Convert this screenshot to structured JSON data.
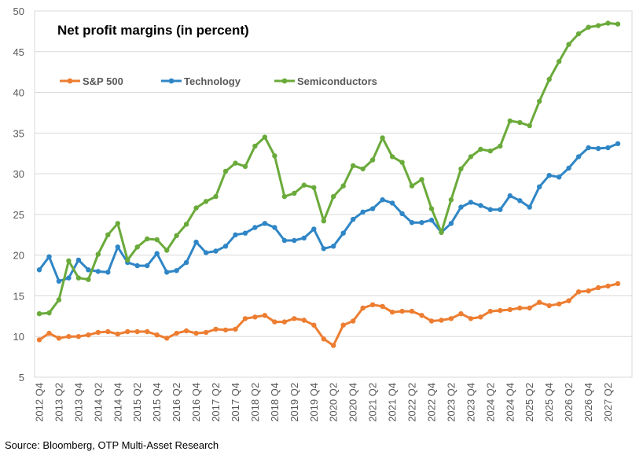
{
  "chart_data": {
    "type": "line",
    "title": "Net profit margins (in percent)",
    "xlabel": "",
    "ylabel": "",
    "ylim": [
      5,
      50
    ],
    "yticks": [
      5,
      10,
      15,
      20,
      25,
      30,
      35,
      40,
      45,
      50
    ],
    "grid": true,
    "legend": "top-left",
    "start_quarter": "2012 Q4",
    "x_tick_labels": [
      "2012 Q4",
      "2013 Q2",
      "2013 Q4",
      "2014 Q2",
      "2014 Q4",
      "2015 Q2",
      "2015 Q4",
      "2016 Q2",
      "2016 Q4",
      "2017 Q2",
      "2017 Q4",
      "2018 Q2",
      "2018 Q4",
      "2019 Q2",
      "2019 Q4",
      "2020 Q2",
      "2020 Q4",
      "2021 Q2",
      "2021 Q4",
      "2022 Q2",
      "2022 Q4",
      "2023 Q2",
      "2023 Q4",
      "2024 Q2",
      "2024 Q4",
      "2025 Q2",
      "2025 Q4",
      "2026 Q2",
      "2026 Q4",
      "2027 Q2"
    ],
    "series": [
      {
        "name": "S&P 500",
        "color": "#ed7d31",
        "values": [
          9.6,
          10.4,
          9.8,
          10.0,
          10.0,
          10.2,
          10.5,
          10.6,
          10.3,
          10.6,
          10.6,
          10.6,
          10.2,
          9.8,
          10.4,
          10.7,
          10.4,
          10.5,
          10.9,
          10.8,
          10.9,
          12.2,
          12.4,
          12.6,
          11.8,
          11.8,
          12.2,
          12.0,
          11.4,
          9.7,
          8.9,
          11.4,
          11.9,
          13.5,
          13.9,
          13.7,
          13.0,
          13.1,
          13.1,
          12.6,
          11.9,
          12.0,
          12.2,
          12.8,
          12.2,
          12.4,
          13.1,
          13.2,
          13.3,
          13.5,
          13.5,
          14.2,
          13.8,
          14.0,
          14.4,
          15.5,
          15.6,
          16.0,
          16.2,
          16.5
        ]
      },
      {
        "name": "Technology",
        "color": "#2f86c6",
        "values": [
          18.2,
          19.8,
          16.8,
          17.2,
          19.4,
          18.2,
          18.0,
          17.9,
          21.0,
          19.1,
          18.7,
          18.7,
          20.2,
          17.9,
          18.1,
          19.1,
          21.6,
          20.3,
          20.5,
          21.1,
          22.5,
          22.7,
          23.4,
          23.9,
          23.4,
          21.8,
          21.8,
          22.1,
          23.2,
          20.8,
          21.1,
          22.7,
          24.4,
          25.3,
          25.7,
          26.8,
          26.4,
          25.1,
          24.0,
          24.0,
          24.3,
          22.8,
          23.9,
          25.9,
          26.5,
          26.1,
          25.6,
          25.6,
          27.3,
          26.7,
          25.9,
          28.4,
          29.8,
          29.6,
          30.7,
          32.1,
          33.2,
          33.1,
          33.2,
          33.7
        ]
      },
      {
        "name": "Semiconductors",
        "color": "#6aaa3a",
        "values": [
          12.8,
          12.9,
          14.5,
          19.3,
          17.2,
          17.0,
          20.1,
          22.5,
          23.9,
          19.4,
          21.0,
          22.0,
          21.9,
          20.6,
          22.4,
          23.8,
          25.8,
          26.6,
          27.2,
          30.3,
          31.3,
          30.9,
          33.4,
          34.5,
          32.2,
          27.2,
          27.6,
          28.6,
          28.3,
          24.2,
          27.2,
          28.5,
          31.0,
          30.6,
          31.7,
          34.4,
          32.1,
          31.4,
          28.5,
          29.3,
          25.7,
          22.8,
          26.8,
          30.6,
          32.1,
          33.0,
          32.8,
          33.4,
          36.5,
          36.3,
          35.9,
          38.9,
          41.6,
          43.8,
          45.9,
          47.2,
          48.0,
          48.2,
          48.5,
          48.4
        ]
      }
    ]
  },
  "source": "Source: Bloomberg, OTP Multi-Asset Research"
}
